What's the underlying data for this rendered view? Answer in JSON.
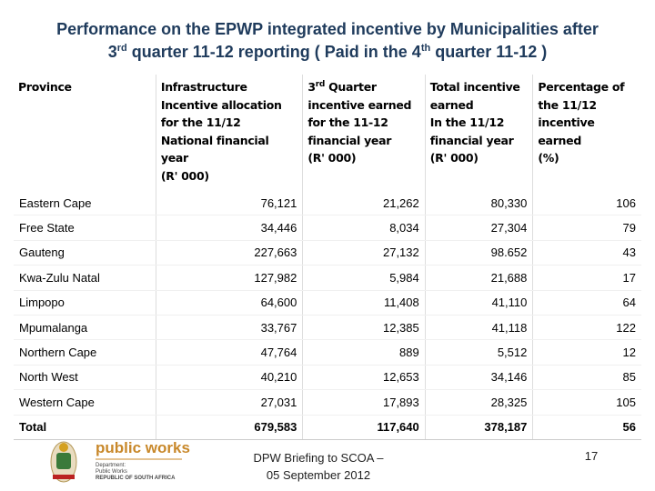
{
  "header": {
    "title": {
      "part1": "Performance on the EPWP integrated incentive by Municipalities after",
      "part2": "3",
      "sup1": "rd",
      "part3": " quarter 11-12 reporting ( Paid in the 4",
      "sup2": "th",
      "part4": "  quarter 11-12 )"
    }
  },
  "table": {
    "columns": [
      {
        "lines": [
          "Province"
        ]
      },
      {
        "lines": [
          "Infrastructure",
          "Incentive allocation",
          "for the 11/12",
          "National financial year",
          "(R' 000)"
        ]
      },
      {
        "first": {
          "base": "3",
          "sup": "rd",
          "rest": "  Quarter"
        },
        "lines": [
          "incentive earned",
          "for the 11-12",
          "financial year",
          "(R' 000)"
        ]
      },
      {
        "lines": [
          "Total incentive",
          "earned",
          "In the 11/12",
          "financial year",
          "(R' 000)"
        ]
      },
      {
        "lines": [
          "Percentage of",
          "the 11/12",
          "incentive",
          "earned",
          "(%)"
        ]
      }
    ],
    "rows": [
      [
        "Eastern Cape",
        "76,121",
        "21,262",
        "80,330",
        "106"
      ],
      [
        "Free State",
        "34,446",
        "8,034",
        "27,304",
        "79"
      ],
      [
        "Gauteng",
        "227,663",
        "27,132",
        "98.652",
        "43"
      ],
      [
        "Kwa-Zulu Natal",
        "127,982",
        "5,984",
        "21,688",
        "17"
      ],
      [
        "Limpopo",
        "64,600",
        "11,408",
        "41,110",
        "64"
      ],
      [
        "Mpumalanga",
        "33,767",
        "12,385",
        "41,118",
        "122"
      ],
      [
        "Northern Cape",
        "47,764",
        "889",
        "5,512",
        "12"
      ],
      [
        "North West",
        "40,210",
        "12,653",
        "34,146",
        "85"
      ],
      [
        "Western Cape",
        "27,031",
        "17,893",
        "28,325",
        "105"
      ],
      [
        "Total",
        "679,583",
        "117,640",
        "378,187",
        "56"
      ]
    ]
  },
  "footer": {
    "logo_title": "public works",
    "logo_sub": [
      "Department:",
      "Public Works",
      "REPUBLIC OF SOUTH AFRICA"
    ],
    "caption_lines": [
      "DPW Briefing to SCOA –",
      "05 September 2012"
    ],
    "page_number": "17"
  }
}
